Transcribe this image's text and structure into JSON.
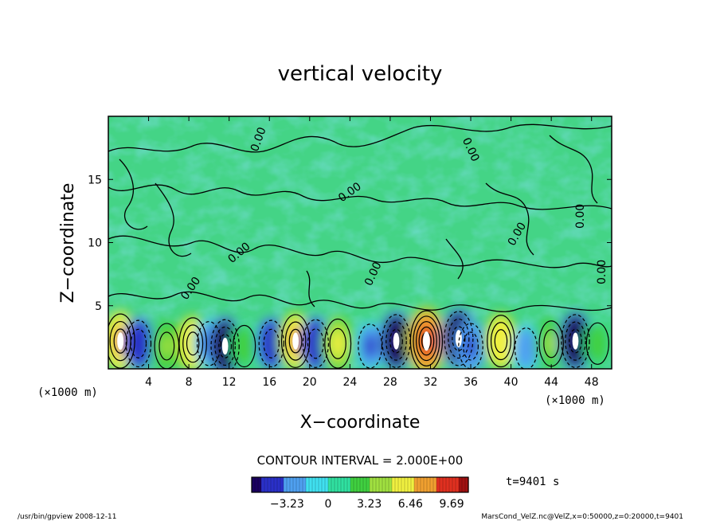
{
  "chart_data": {
    "type": "heatmap",
    "title": "vertical velocity",
    "xlabel": "X−coordinate",
    "ylabel": "Z−coordinate",
    "x_unit_left": "(×1000 m)",
    "x_unit_right": "(×1000 m)",
    "xlim": [
      0,
      50
    ],
    "ylim": [
      0,
      20
    ],
    "x_ticks": [
      4,
      8,
      12,
      16,
      20,
      24,
      28,
      32,
      36,
      40,
      44,
      48
    ],
    "y_ticks": [
      5,
      10,
      15
    ],
    "contour_interval_text": "CONTOUR INTERVAL = 2.000E+00",
    "contour_labels": [
      "0.00",
      "0.00",
      "0.00",
      "0.00",
      "0.00",
      "0.00",
      "0.00",
      "0.00",
      "0.00"
    ],
    "colorbar": {
      "ticks": [
        "−3.23",
        "0",
        "3.23",
        "6.46",
        "9.69"
      ],
      "tick_values": [
        -3.23,
        0,
        3.23,
        6.46,
        9.69
      ],
      "range": [
        -6.0,
        11.0
      ],
      "colors": [
        "#1a0060",
        "#2a30c8",
        "#4fa0f0",
        "#40e0f0",
        "#30e0a0",
        "#40d040",
        "#a0e040",
        "#f0f040",
        "#f0a030",
        "#e03020",
        "#a01010"
      ]
    },
    "cells": [
      {
        "x": 1.2,
        "z": 2.2,
        "w": 7.5
      },
      {
        "x": 3.0,
        "z": 2.0,
        "w": -4.5
      },
      {
        "x": 5.8,
        "z": 1.8,
        "w": 4.0
      },
      {
        "x": 8.4,
        "z": 2.0,
        "w": 6.5
      },
      {
        "x": 10.0,
        "z": 2.0,
        "w": -3.5
      },
      {
        "x": 11.6,
        "z": 1.8,
        "w": -7.0
      },
      {
        "x": 13.5,
        "z": 1.8,
        "w": 2.5
      },
      {
        "x": 16.2,
        "z": 2.0,
        "w": -4.5
      },
      {
        "x": 18.6,
        "z": 2.2,
        "w": 7.0
      },
      {
        "x": 20.6,
        "z": 2.0,
        "w": -5.0
      },
      {
        "x": 22.8,
        "z": 2.0,
        "w": 5.5
      },
      {
        "x": 26.0,
        "z": 1.8,
        "w": -3.5
      },
      {
        "x": 28.6,
        "z": 2.2,
        "w": -7.0
      },
      {
        "x": 31.6,
        "z": 2.2,
        "w": 10.0
      },
      {
        "x": 34.8,
        "z": 2.4,
        "w": -7.5
      },
      {
        "x": 36.0,
        "z": 1.8,
        "w": -4.0
      },
      {
        "x": 39.0,
        "z": 2.2,
        "w": 6.5
      },
      {
        "x": 41.5,
        "z": 1.6,
        "w": -2.5
      },
      {
        "x": 44.0,
        "z": 2.0,
        "w": 4.0
      },
      {
        "x": 46.4,
        "z": 2.2,
        "w": -7.0
      },
      {
        "x": 48.6,
        "z": 2.0,
        "w": 2.5
      }
    ],
    "time_label": "t=9401 s"
  },
  "footer": {
    "left": "/usr/bin/gpview   2008-12-11",
    "right": "MarsCond_VelZ.nc@VelZ,x=0:50000,z=0:20000,t=9401"
  }
}
